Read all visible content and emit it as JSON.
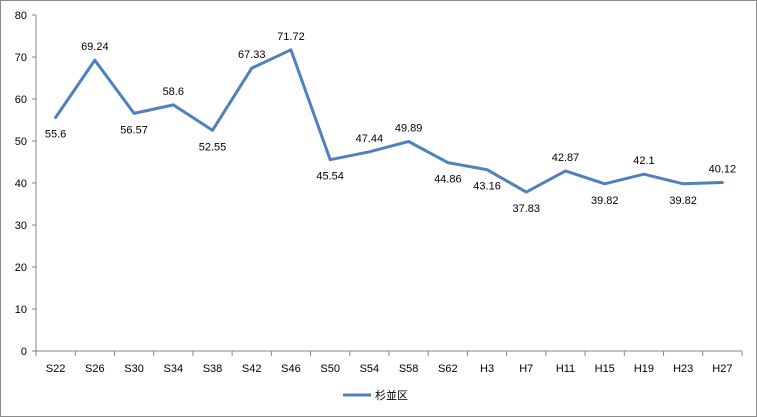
{
  "chart_data": {
    "type": "line",
    "title": "",
    "xlabel": "",
    "ylabel": "",
    "categories": [
      "S22",
      "S26",
      "S30",
      "S34",
      "S38",
      "S42",
      "S46",
      "S50",
      "S54",
      "S58",
      "S62",
      "H3",
      "H7",
      "H11",
      "H15",
      "H19",
      "H23",
      "H27"
    ],
    "series": [
      {
        "name": "杉並区",
        "color": "#4f81bd",
        "values": [
          55.6,
          69.24,
          56.57,
          58.6,
          52.55,
          67.33,
          71.72,
          45.54,
          47.44,
          49.89,
          44.86,
          43.16,
          37.83,
          42.87,
          39.82,
          42.1,
          39.82,
          40.12
        ],
        "labels": [
          "55.6",
          "69.24",
          "56.57",
          "58.6",
          "52.55",
          "67.33",
          "71.72",
          "45.54",
          "47.44",
          "49.89",
          "44.86",
          "43.16",
          "37.83",
          "42.87",
          "39.82",
          "42.1",
          "39.82",
          "40.12"
        ]
      }
    ],
    "ylim": [
      0,
      80
    ],
    "yticks": [
      "0",
      "10",
      "20",
      "30",
      "40",
      "50",
      "60",
      "70",
      "80"
    ],
    "grid": false,
    "legend": "bottom"
  }
}
